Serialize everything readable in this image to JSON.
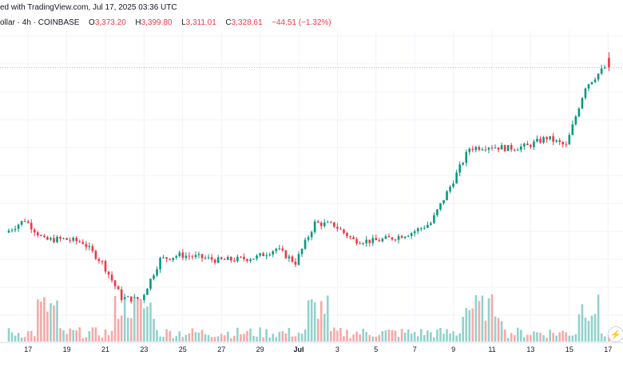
{
  "header": {
    "text": "ed with TradingView.com, Jul 17, 2025 03:36 UTC"
  },
  "ohlc": {
    "symbol": "ollar · 4h · COINBASE",
    "open_label": "O",
    "open_value": "3,373.20",
    "high_label": "H",
    "high_value": "3,399.80",
    "low_label": "L",
    "low_value": "3,311.01",
    "close_label": "C",
    "close_value": "3,328.61",
    "change": "−44.51 (−1.32%)"
  },
  "colors": {
    "up": "#089981",
    "down": "#f23645",
    "up_volume": "#92d2cc",
    "down_volume": "#f7a9a7",
    "price_line": "#f23645",
    "grid": "#f0f3fa"
  },
  "x_axis": {
    "labels": [
      "17",
      "19",
      "21",
      "23",
      "25",
      "27",
      "29",
      "Jul",
      "3",
      "5",
      "7",
      "9",
      "11",
      "13",
      "15",
      "17"
    ],
    "bold_labels": [
      "Jul"
    ]
  },
  "logo_icon": "tradingview-logo-icon",
  "chart_data": {
    "type": "candlestick",
    "title": "",
    "interval": "4h",
    "exchange": "COINBASE",
    "anchors": [
      {
        "x": "Jun 16",
        "close": 2555
      },
      {
        "x": "Jun 17",
        "close": 2615
      },
      {
        "x": "Jun 18",
        "close": 2520
      },
      {
        "x": "Jun 19",
        "close": 2525
      },
      {
        "x": "Jun 20",
        "close": 2510
      },
      {
        "x": "Jun 21",
        "close": 2415
      },
      {
        "x": "Jun 22",
        "close": 2250
      },
      {
        "x": "Jun 23",
        "close": 2240
      },
      {
        "x": "Jun 24",
        "close": 2430
      },
      {
        "x": "Jun 25",
        "close": 2450
      },
      {
        "x": "Jun 26",
        "close": 2440
      },
      {
        "x": "Jun 27",
        "close": 2425
      },
      {
        "x": "Jun 28",
        "close": 2430
      },
      {
        "x": "Jun 29",
        "close": 2440
      },
      {
        "x": "Jun 30",
        "close": 2480
      },
      {
        "x": "Jul 1",
        "close": 2415
      },
      {
        "x": "Jul 2",
        "close": 2600
      },
      {
        "x": "Jul 3",
        "close": 2590
      },
      {
        "x": "Jul 4",
        "close": 2520
      },
      {
        "x": "Jul 5",
        "close": 2515
      },
      {
        "x": "Jul 6",
        "close": 2530
      },
      {
        "x": "Jul 7",
        "close": 2555
      },
      {
        "x": "Jul 8",
        "close": 2600
      },
      {
        "x": "Jul 9",
        "close": 2770
      },
      {
        "x": "Jul 10",
        "close": 2950
      },
      {
        "x": "Jul 11",
        "close": 2960
      },
      {
        "x": "Jul 12",
        "close": 2950
      },
      {
        "x": "Jul 13",
        "close": 2960
      },
      {
        "x": "Jul 14",
        "close": 3000
      },
      {
        "x": "Jul 15",
        "close": 2960
      },
      {
        "x": "Jul 16",
        "close": 3240
      },
      {
        "x": "Jul 17",
        "close": 3328.61
      }
    ],
    "last_bar": {
      "open": 3373.2,
      "high": 3399.8,
      "low": 3311.01,
      "close": 3328.61
    },
    "volume_relative": "low to moderate, spikes near Jun 18, Jun 22-23, Jul 2, Jul 9-11, Jul 16-17",
    "x_labels": [
      "17",
      "19",
      "21",
      "23",
      "25",
      "27",
      "29",
      "Jul",
      "3",
      "5",
      "7",
      "9",
      "11",
      "13",
      "15",
      "17"
    ]
  }
}
